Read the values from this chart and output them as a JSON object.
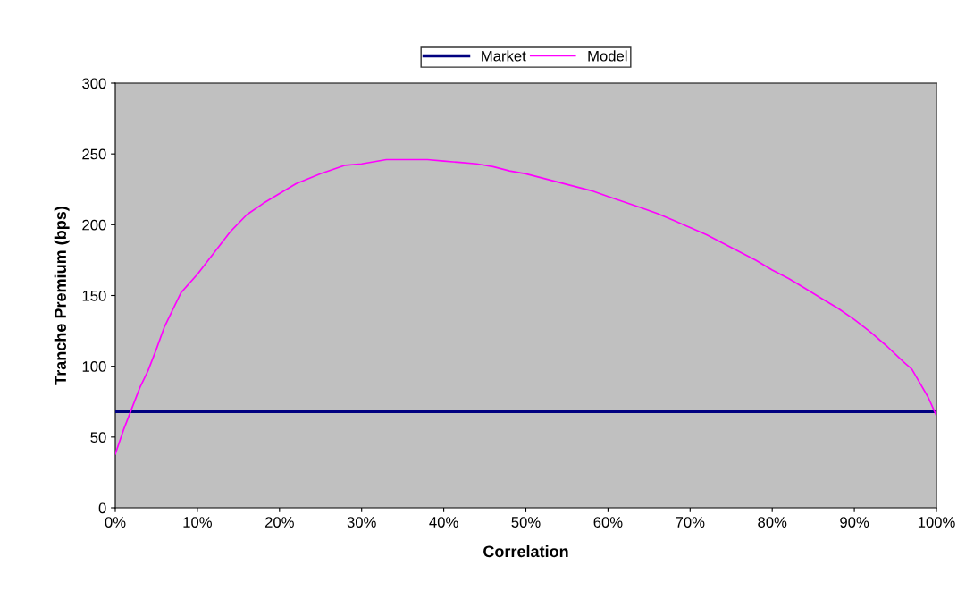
{
  "chart_data": {
    "type": "line",
    "xlabel": "Correlation",
    "ylabel": "Tranche Premium (bps)",
    "xlim": [
      0,
      100
    ],
    "ylim": [
      0,
      300
    ],
    "xticks": [
      {
        "value": 0,
        "label": "0%"
      },
      {
        "value": 10,
        "label": "10%"
      },
      {
        "value": 20,
        "label": "20%"
      },
      {
        "value": 30,
        "label": "30%"
      },
      {
        "value": 40,
        "label": "40%"
      },
      {
        "value": 50,
        "label": "50%"
      },
      {
        "value": 60,
        "label": "60%"
      },
      {
        "value": 70,
        "label": "70%"
      },
      {
        "value": 80,
        "label": "80%"
      },
      {
        "value": 90,
        "label": "90%"
      },
      {
        "value": 100,
        "label": "100%"
      }
    ],
    "yticks": [
      0,
      50,
      100,
      150,
      200,
      250,
      300
    ],
    "grid": false,
    "legend": "top",
    "marker": "none",
    "line_style": "solid",
    "series": [
      {
        "name": "Market",
        "color": "#000080",
        "x": [
          0,
          100
        ],
        "values": [
          68,
          68
        ]
      },
      {
        "name": "Model",
        "color": "#ff00ff",
        "x": [
          0,
          1,
          2,
          3,
          4,
          5,
          6,
          7,
          8,
          10,
          12,
          14,
          16,
          18,
          20,
          22,
          25,
          28,
          30,
          33,
          36,
          38,
          40,
          42,
          44,
          46,
          48,
          50,
          52,
          54,
          56,
          58,
          60,
          62,
          64,
          66,
          68,
          70,
          72,
          74,
          76,
          78,
          80,
          82,
          84,
          86,
          88,
          90,
          92,
          94,
          96,
          97,
          98,
          99,
          100
        ],
        "values": [
          38,
          55,
          70,
          85,
          97,
          112,
          128,
          140,
          152,
          165,
          180,
          195,
          207,
          215,
          222,
          229,
          236,
          242,
          243,
          246,
          246,
          246,
          245,
          244,
          243,
          241,
          238,
          236,
          233,
          230,
          227,
          224,
          220,
          216,
          212,
          208,
          203,
          198,
          193,
          187,
          181,
          175,
          168,
          162,
          155,
          148,
          141,
          133,
          124,
          114,
          103,
          98,
          88,
          78,
          65
        ]
      }
    ]
  }
}
